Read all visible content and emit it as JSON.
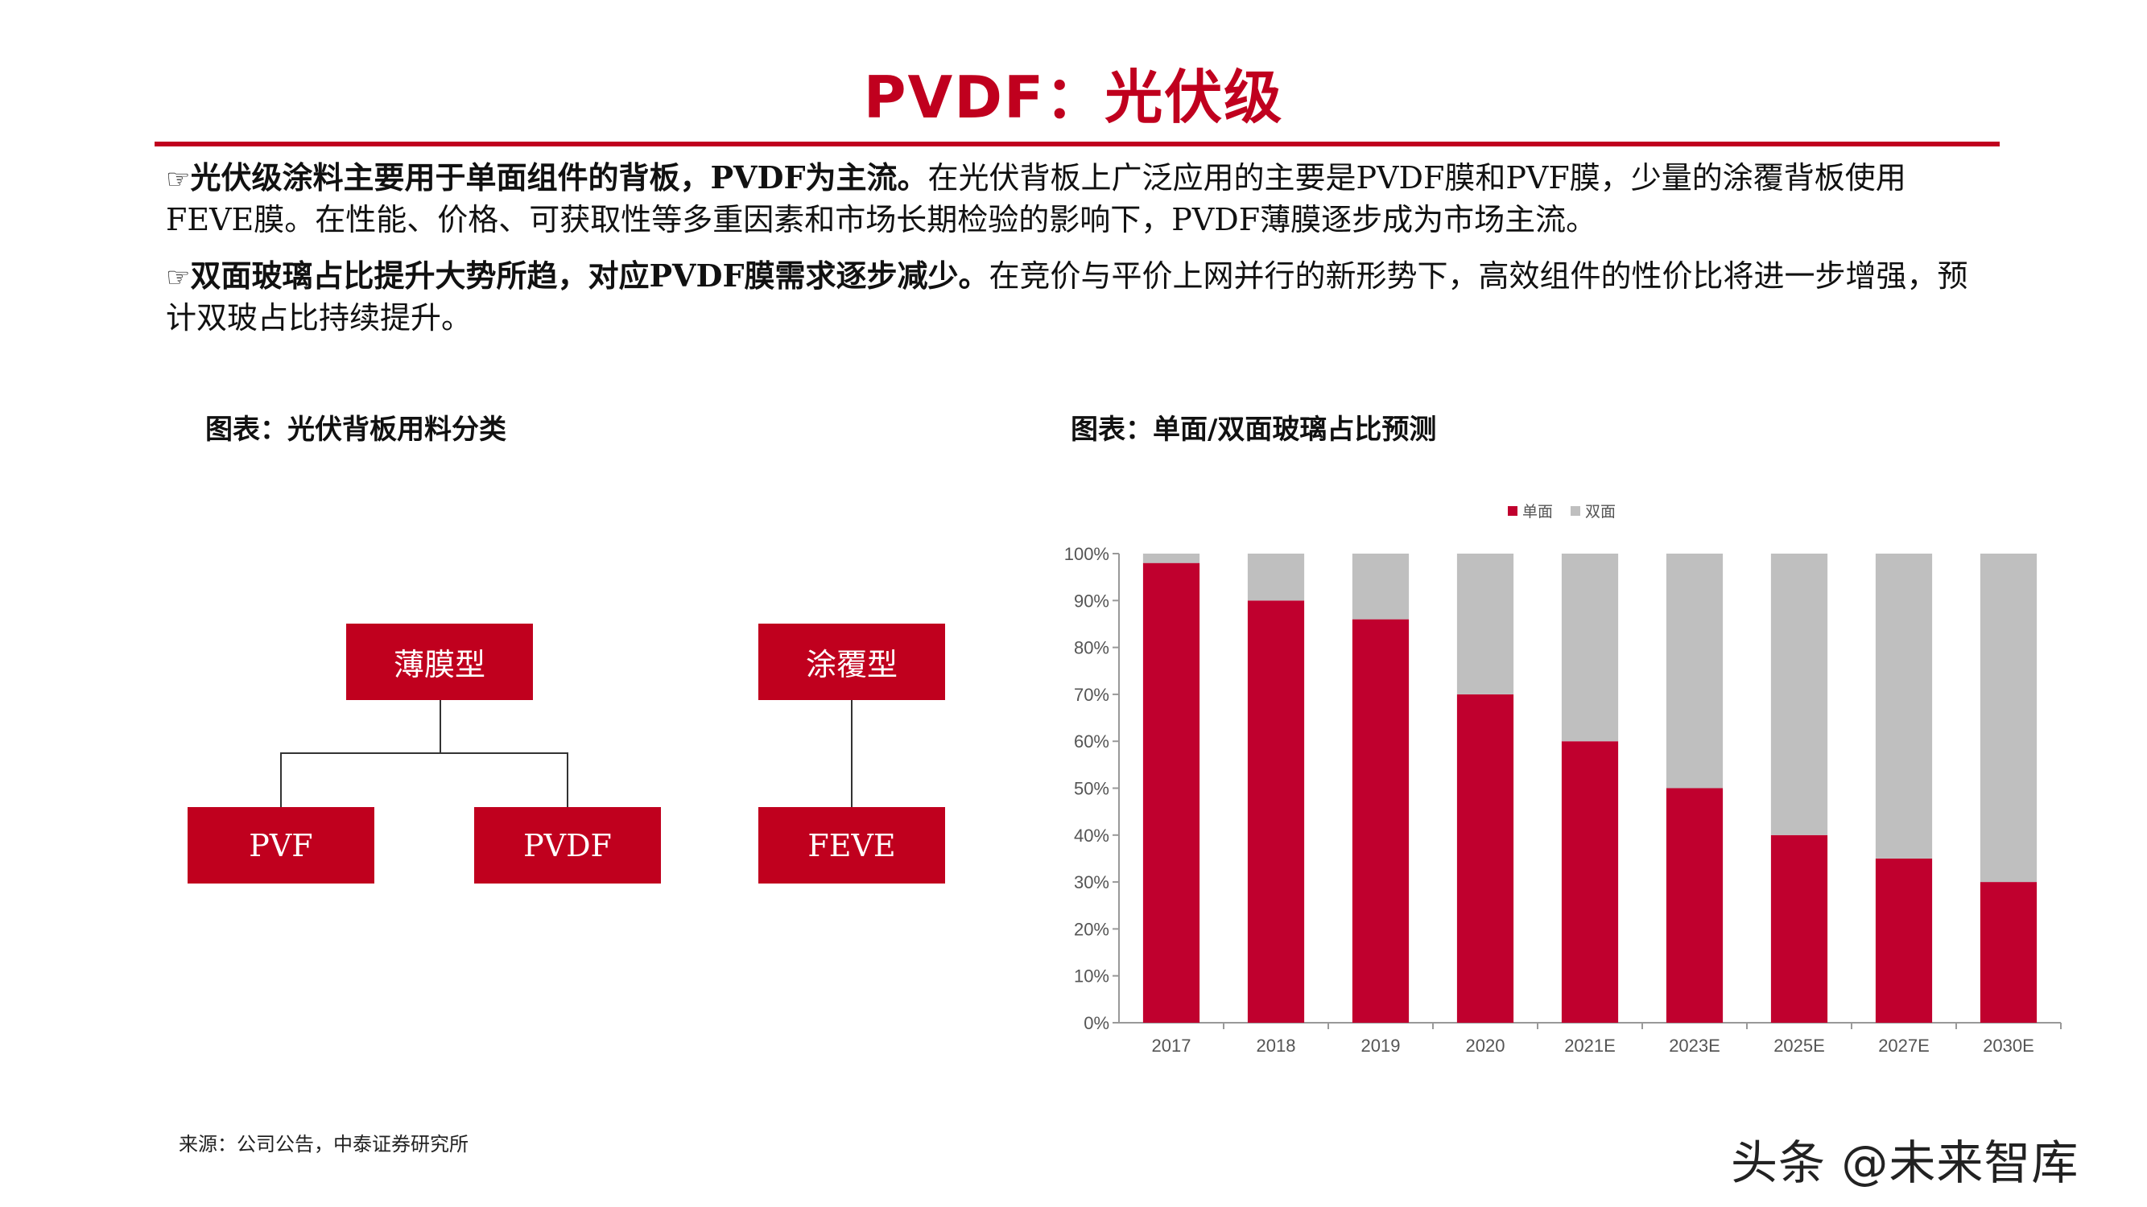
{
  "title": "PVDF：光伏级",
  "bullets": [
    {
      "icon": "pointing-hand-icon",
      "bold": "光伏级涂料主要用于单面组件的背板，PVDF为主流。",
      "text": "在光伏背板上广泛应用的主要是PVDF膜和PVF膜，少量的涂覆背板使用FEVE膜。在性能、价格、可获取性等多重因素和市场长期检验的影响下，PVDF薄膜逐步成为市场主流。"
    },
    {
      "icon": "pointing-hand-icon",
      "bold": "双面玻璃占比提升大势所趋，对应PVDF膜需求逐步减少。",
      "text": "在竞价与平价上网并行的新形势下，高效组件的性价比将进一步增强，预计双玻占比持续提升。"
    }
  ],
  "caption_left": "图表：光伏背板用料分类",
  "caption_right": "图表：单面/双面玻璃占比预测",
  "diagram": {
    "film_type": "薄膜型",
    "coating_type": "涂覆型",
    "pvf": "PVF",
    "pvdf": "PVDF",
    "feve": "FEVE"
  },
  "chart_data": {
    "type": "bar",
    "stacked": true,
    "categories": [
      "2017",
      "2018",
      "2019",
      "2020",
      "2021E",
      "2023E",
      "2025E",
      "2027E",
      "2030E"
    ],
    "series": [
      {
        "name": "单面",
        "color": "#c0002e",
        "values": [
          98,
          90,
          86,
          70,
          60,
          50,
          40,
          35,
          30
        ]
      },
      {
        "name": "双面",
        "color": "#bfbfbf",
        "values": [
          2,
          10,
          14,
          30,
          40,
          50,
          60,
          65,
          70
        ]
      }
    ],
    "yticks": [
      "0%",
      "10%",
      "20%",
      "30%",
      "40%",
      "50%",
      "60%",
      "70%",
      "80%",
      "90%",
      "100%"
    ],
    "ylim": [
      0,
      100
    ],
    "legend": "top-center",
    "grid": false
  },
  "source": "来源：公司公告，中泰证券研究所",
  "watermark": "头条 @未来智库"
}
